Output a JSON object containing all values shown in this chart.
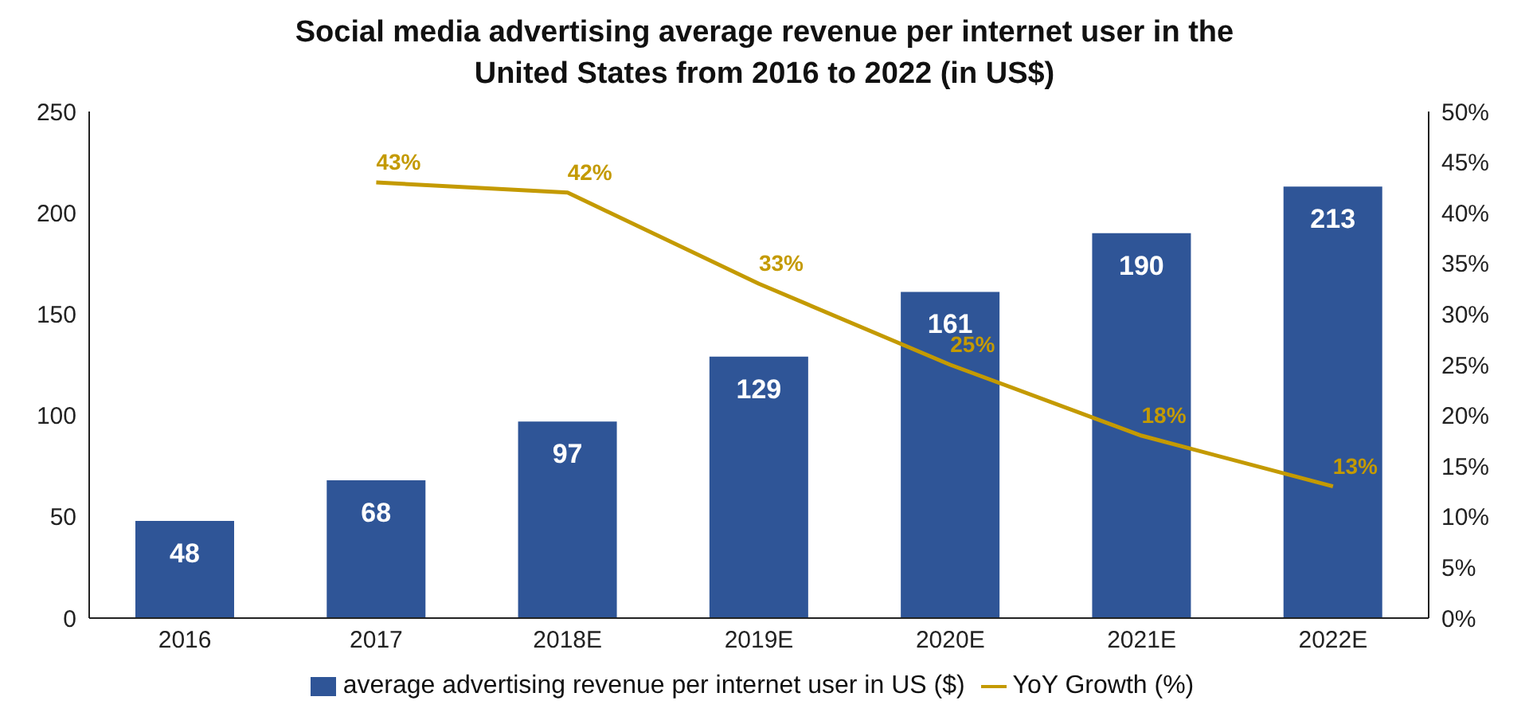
{
  "chart_data": {
    "type": "bar",
    "title": "Social media advertising average revenue per internet user in the United States from 2016 to 2022 (in US$)",
    "categories": [
      "2016",
      "2017",
      "2018E",
      "2019E",
      "2020E",
      "2021E",
      "2022E"
    ],
    "series": [
      {
        "name": "average advertising revenue per internet user in US ($)",
        "color": "#2f5597",
        "values": [
          48,
          68,
          97,
          129,
          161,
          190,
          213
        ],
        "value_labels": [
          "48",
          "68",
          "97",
          "129",
          "161",
          "190",
          "213"
        ]
      },
      {
        "name": "YoY Growth (%)",
        "type": "line",
        "axis": "y2",
        "color": "#c49a00",
        "values": [
          null,
          43,
          42,
          33,
          25,
          18,
          13
        ],
        "value_labels": [
          null,
          "43%",
          "42%",
          "33%",
          "25%",
          "18%",
          "13%"
        ]
      }
    ],
    "ylim": [
      0,
      250
    ],
    "yticks": [
      0,
      50,
      100,
      150,
      200,
      250
    ],
    "y2lim": [
      0,
      50
    ],
    "y2ticks": [
      {
        "value": 0,
        "label": "0%"
      },
      {
        "value": 5,
        "label": "5%"
      },
      {
        "value": 10,
        "label": "10%"
      },
      {
        "value": 15,
        "label": "15%"
      },
      {
        "value": 20,
        "label": "20%"
      },
      {
        "value": 25,
        "label": "25%"
      },
      {
        "value": 30,
        "label": "30%"
      },
      {
        "value": 35,
        "label": "35%"
      },
      {
        "value": 40,
        "label": "40%"
      },
      {
        "value": 45,
        "label": "45%"
      },
      {
        "value": 50,
        "label": "50%"
      }
    ],
    "grid": false,
    "legend": "bottom",
    "marker": "none",
    "line_style": "solid"
  }
}
